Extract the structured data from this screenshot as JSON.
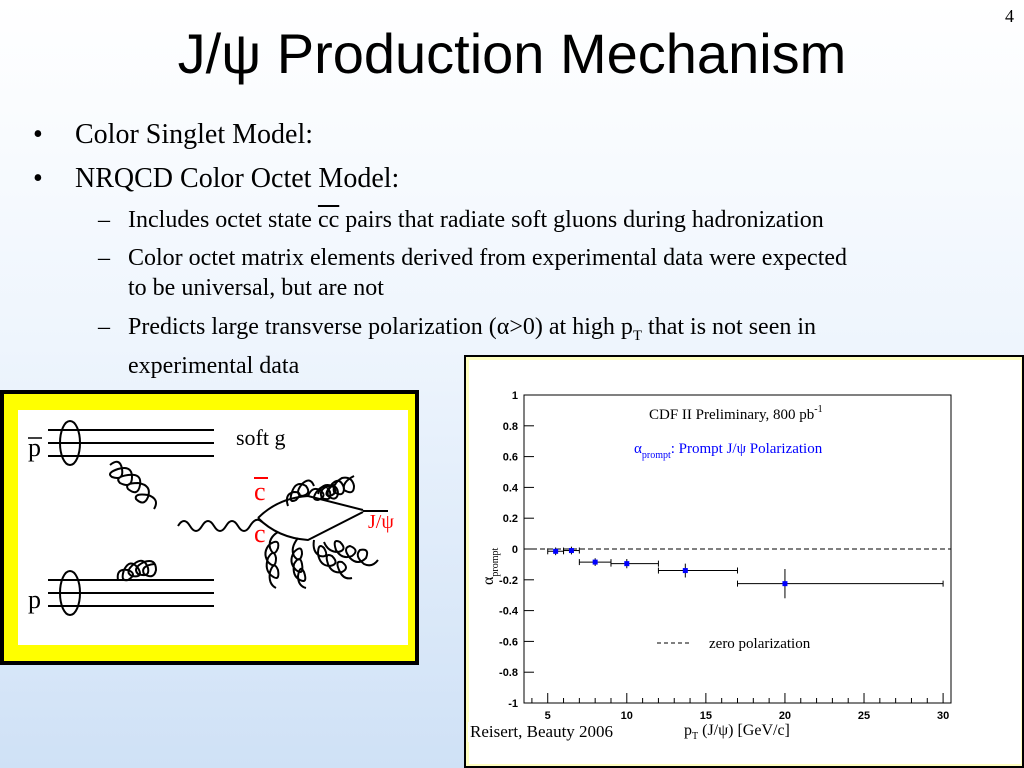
{
  "slide_number": "4",
  "title": "J/ψ Production Mechanism",
  "bullets": [
    {
      "text": "Color Singlet Model:"
    },
    {
      "text": "NRQCD Color Octet Model:"
    }
  ],
  "sub_bullets": {
    "one_a": "Includes octet state ",
    "one_cc": "cc",
    "one_b": " pairs that radiate soft gluons during hadronization",
    "two_l1": "Color octet matrix elements derived from experimental data were expected",
    "two_l2": "to be universal, but are not",
    "three_a": "Predicts large transverse polarization (",
    "three_alpha": "α",
    "three_b": ">0) at high p",
    "three_sub": "T",
    "three_c": " that is not seen in",
    "three_l2": "experimental data"
  },
  "diagram": {
    "p_top": "p",
    "p_bottom": "p",
    "soft_g": "soft g",
    "c_bar": "c",
    "c": "c",
    "jpsi": "J/ψ",
    "colors": {
      "quark": "#ff0000",
      "frame": "#ffff00"
    }
  },
  "chart_data": {
    "type": "scatter",
    "title": "CDF II Preliminary, 800 pb",
    "title_sup": "-1",
    "series_symbol": "α",
    "series_sub": "prompt",
    "series_text": ": Prompt J/ψ Polarization",
    "xlabel_main": "p",
    "xlabel_sub": "T",
    "xlabel_rest": " (J/ψ) [GeV/c]",
    "ylabel_symbol": "α",
    "ylabel_sub": "prompt",
    "xlim": [
      3.5,
      30.5
    ],
    "ylim": [
      -1,
      1
    ],
    "xticks": [
      5,
      10,
      15,
      20,
      25,
      30
    ],
    "yticks": [
      -1,
      -0.8,
      -0.6,
      -0.4,
      -0.2,
      0,
      0.2,
      0.4,
      0.6,
      0.8,
      1
    ],
    "ytick_labels": [
      "-1",
      "-0.8",
      "-0.6",
      "-0.4",
      "-0.2",
      "0",
      "0.2",
      "0.4",
      "0.6",
      "0.8",
      "1"
    ],
    "points": [
      {
        "x": 5.5,
        "xlo": 5.0,
        "xhi": 6.0,
        "y": -0.015,
        "err": 0.025
      },
      {
        "x": 6.5,
        "xlo": 6.0,
        "xhi": 7.0,
        "y": -0.01,
        "err": 0.025
      },
      {
        "x": 8.0,
        "xlo": 7.0,
        "xhi": 9.0,
        "y": -0.085,
        "err": 0.025
      },
      {
        "x": 10.0,
        "xlo": 9.0,
        "xhi": 12.0,
        "y": -0.095,
        "err": 0.03
      },
      {
        "x": 13.7,
        "xlo": 12.0,
        "xhi": 17.0,
        "y": -0.14,
        "err": 0.045
      },
      {
        "x": 20.0,
        "xlo": 17.0,
        "xhi": 30.0,
        "y": -0.225,
        "err": 0.095
      }
    ],
    "zero_line": 0,
    "legend_label": "zero polarization",
    "colors": {
      "series": "#0000ff",
      "text": "#000000"
    }
  },
  "credit": "Reisert, Beauty 2006"
}
